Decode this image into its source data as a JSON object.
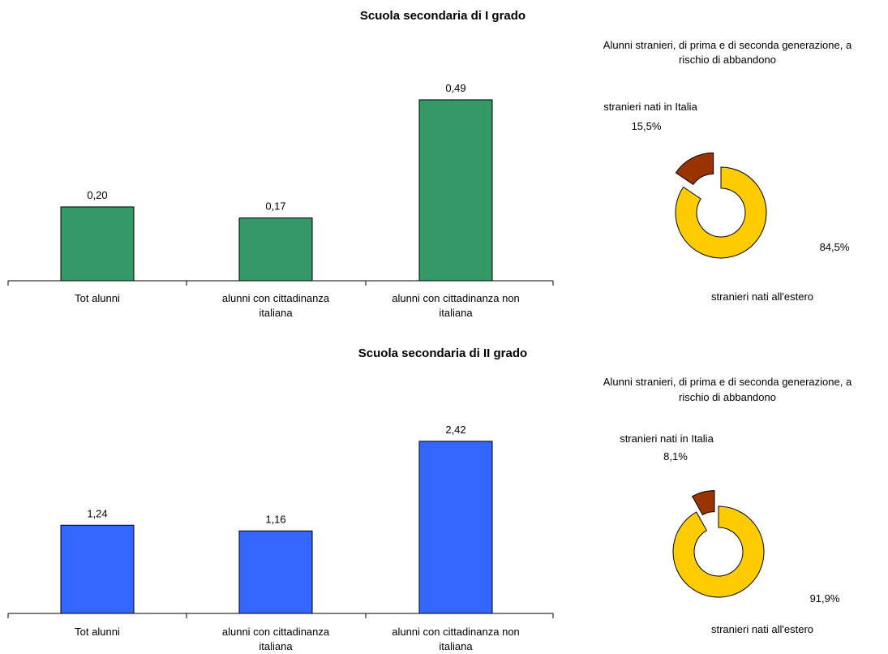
{
  "chart_data": [
    {
      "type": "bar",
      "title": "Scuola secondaria di I grado",
      "categories": [
        [
          "Tot alunni"
        ],
        [
          "alunni con cittadinanza",
          "italiana"
        ],
        [
          "alunni con cittadinanza non",
          "italiana"
        ]
      ],
      "values": [
        0.2,
        0.17,
        0.49
      ],
      "value_labels": [
        "0,20",
        "0,17",
        "0,49"
      ],
      "ylim": [
        0,
        0.58
      ],
      "grid": false,
      "colors": {
        "bar": "#339966"
      }
    },
    {
      "type": "pie",
      "style": "doughnut-exploded",
      "title": [
        "Alunni stranieri, di prima e di seconda generazione, a",
        "rischio di abbandono"
      ],
      "slices": [
        {
          "name": "stranieri nati in Italia",
          "value": 15.5,
          "label": "15,5%",
          "color": "#993300"
        },
        {
          "name": "stranieri nati all'estero",
          "value": 84.5,
          "label": "84,5%",
          "color": "#FFCC00"
        }
      ]
    },
    {
      "type": "bar",
      "title": "Scuola secondaria di II grado",
      "categories": [
        [
          "Tot alunni"
        ],
        [
          "alunni con cittadinanza",
          "italiana"
        ],
        [
          "alunni con cittadinanza non",
          "italiana"
        ]
      ],
      "values": [
        1.24,
        1.16,
        2.42
      ],
      "value_labels": [
        "1,24",
        "1,16",
        "2,42"
      ],
      "ylim": [
        0,
        2.92
      ],
      "grid": false,
      "colors": {
        "bar": "#3366FF"
      }
    },
    {
      "type": "pie",
      "style": "doughnut-exploded",
      "title": [
        "Alunni stranieri, di prima e di seconda generazione, a",
        "rischio di abbandono"
      ],
      "slices": [
        {
          "name": "stranieri nati in Italia",
          "value": 8.1,
          "label": "8,1%",
          "color": "#993300"
        },
        {
          "name": "stranieri nati all'estero",
          "value": 91.9,
          "label": "91,9%",
          "color": "#FFCC00"
        }
      ]
    }
  ]
}
